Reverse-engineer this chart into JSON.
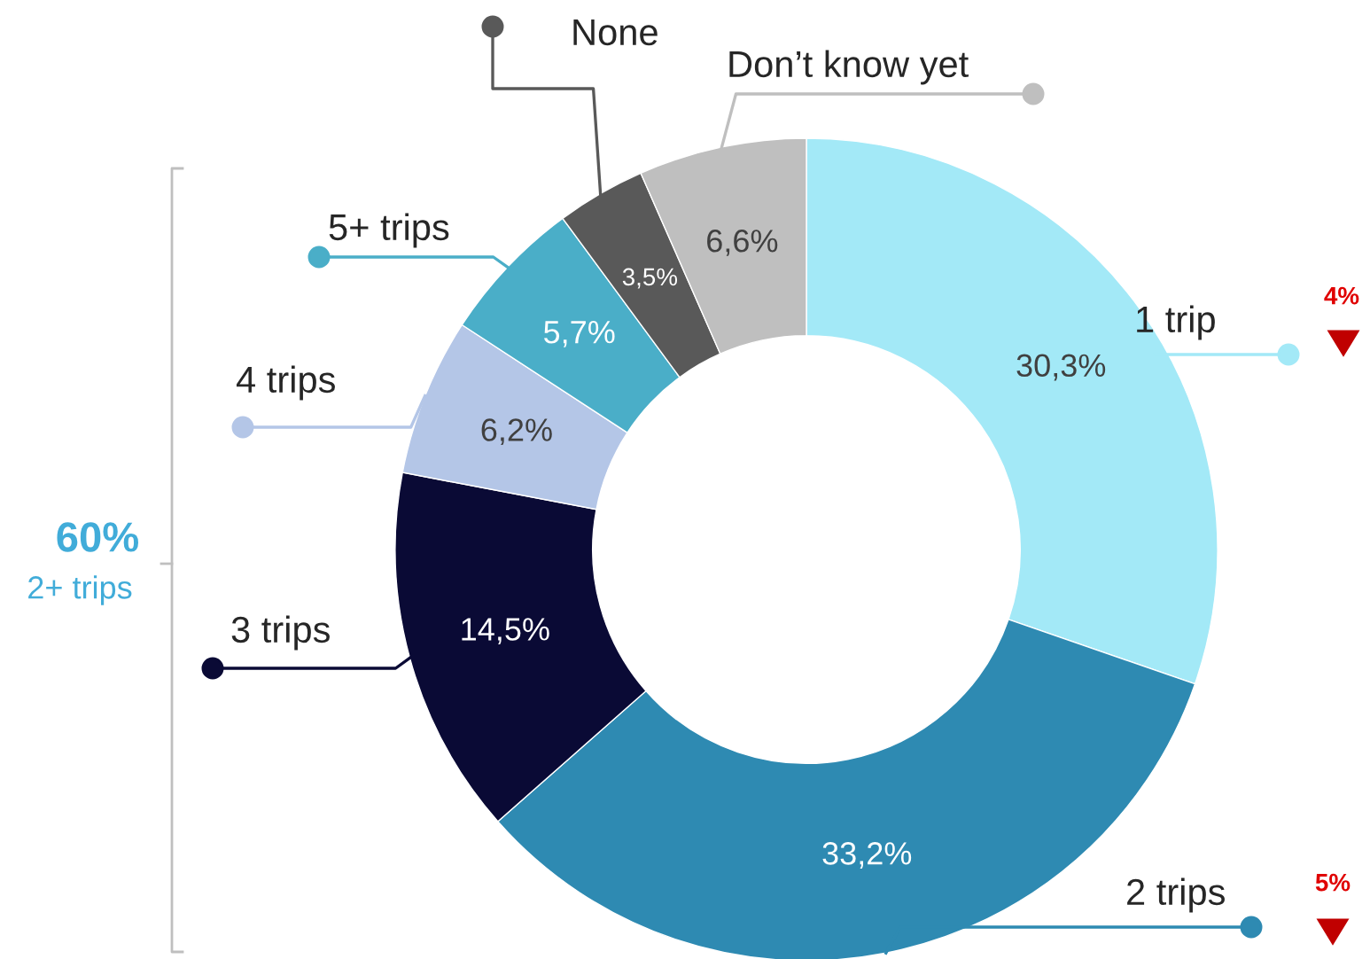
{
  "chart_data": {
    "type": "donut",
    "categories": [
      "1 trip",
      "2 trips",
      "3 trips",
      "4 trips",
      "5+ trips",
      "None",
      "Don’t know yet"
    ],
    "values": [
      30.3,
      33.2,
      14.5,
      6.2,
      5.7,
      3.5,
      6.6
    ],
    "value_labels": [
      "30,3%",
      "33,2%",
      "14,5%",
      "6,2%",
      "5,7%",
      "3,5%",
      "6,6%"
    ],
    "colors": [
      "#a3e9f7",
      "#2e8ab2",
      "#0a0a35",
      "#b4c6e7",
      "#4aaec8",
      "#595959",
      "#bfbfbf"
    ],
    "annotations": [
      "60%",
      "2+ trips",
      "4%",
      "5%"
    ]
  }
}
